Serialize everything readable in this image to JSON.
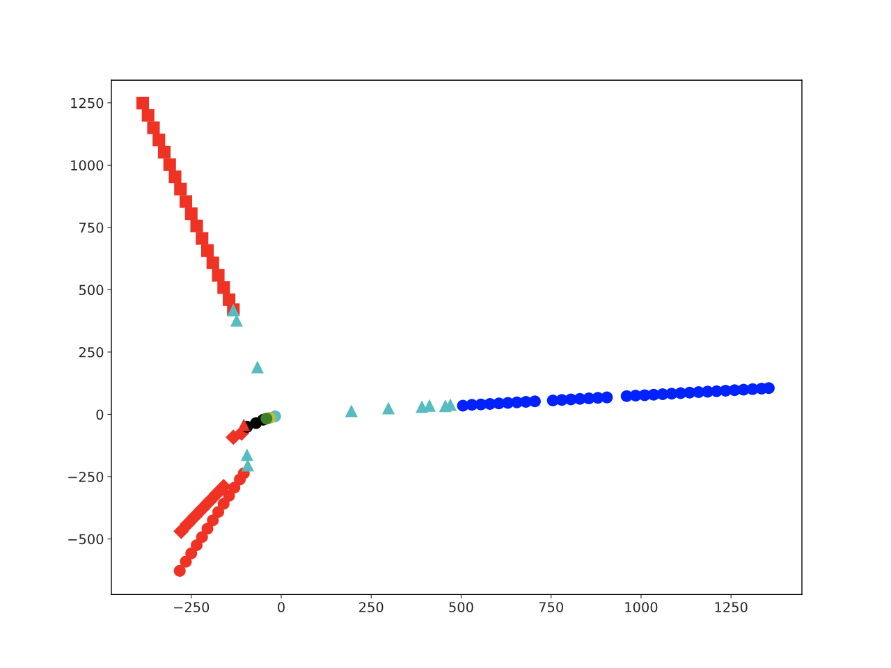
{
  "chart_data": {
    "type": "scatter",
    "xlim": [
      -472,
      1447
    ],
    "ylim": [
      -723,
      1341
    ],
    "xticks": [
      -250,
      0,
      250,
      500,
      750,
      1000,
      1250
    ],
    "yticks": [
      -500,
      -250,
      0,
      250,
      500,
      750,
      1000,
      1250
    ],
    "grid": false,
    "series": [
      {
        "color": "#0022ff",
        "marker": "circle",
        "x": [
          505,
          530,
          555,
          580,
          605,
          630,
          655,
          680,
          705,
          755,
          780,
          805,
          830,
          855,
          880,
          905,
          960,
          985,
          1010,
          1035,
          1060,
          1085,
          1110,
          1135,
          1160,
          1185,
          1210,
          1235,
          1260,
          1285,
          1310,
          1335,
          1355
        ],
        "values": [
          35,
          38,
          40,
          42,
          44,
          46,
          48,
          50,
          52,
          56,
          58,
          60,
          62,
          64,
          66,
          68,
          73,
          75,
          77,
          79,
          81,
          83,
          85,
          87,
          89,
          91,
          93,
          95,
          97,
          99,
          101,
          103,
          105
        ]
      },
      {
        "color": "#ee3224",
        "marker": "square",
        "x": [
          -385,
          -370,
          -355,
          -340,
          -325,
          -310,
          -295,
          -280,
          -265,
          -250,
          -235,
          -220,
          -205,
          -190,
          -175,
          -160,
          -145,
          -133
        ],
        "values": [
          1249,
          1200,
          1150,
          1101,
          1052,
          1002,
          953,
          904,
          854,
          805,
          756,
          706,
          657,
          608,
          558,
          509,
          460,
          420
        ]
      },
      {
        "color": "#ee3224",
        "marker": "circle",
        "x": [
          -282,
          -265,
          -250,
          -235,
          -220,
          -205,
          -190,
          -175,
          -160,
          -145,
          -130,
          -115,
          -104
        ],
        "values": [
          -628,
          -591,
          -558,
          -525,
          -492,
          -459,
          -425,
          -392,
          -359,
          -327,
          -294,
          -261,
          -237
        ]
      },
      {
        "color": "#ee3224",
        "marker": "diamond",
        "x": [
          -278,
          -260,
          -240,
          -220,
          -200,
          -180,
          -160,
          -133,
          -110
        ],
        "values": [
          -469,
          -440,
          -410,
          -380,
          -350,
          -320,
          -290,
          -92,
          -75
        ]
      },
      {
        "color": "#000000",
        "marker": "circle",
        "x": [
          -95,
          -70,
          -50
        ],
        "values": [
          -50,
          -35,
          -22
        ]
      },
      {
        "color": "#ee3224",
        "marker": "triangle",
        "x": [
          -104
        ],
        "values": [
          -42
        ]
      },
      {
        "color": "#56bcc0",
        "marker": "triangle",
        "x": [
          -133,
          -124,
          -66,
          -95,
          -93,
          195,
          298,
          391,
          412,
          456,
          470
        ],
        "values": [
          419,
          377,
          190,
          -162,
          -204,
          14,
          25,
          31,
          36,
          34,
          39
        ]
      },
      {
        "color": "#56bcc0",
        "marker": "circle",
        "x": [
          -17
        ],
        "values": [
          -8
        ]
      },
      {
        "color": "#bdbd3a",
        "marker": "circle",
        "x": [
          -31
        ],
        "values": [
          -14
        ]
      },
      {
        "color": "#3f7f2a",
        "marker": "circle",
        "x": [
          -41
        ],
        "values": [
          -17
        ]
      }
    ]
  }
}
